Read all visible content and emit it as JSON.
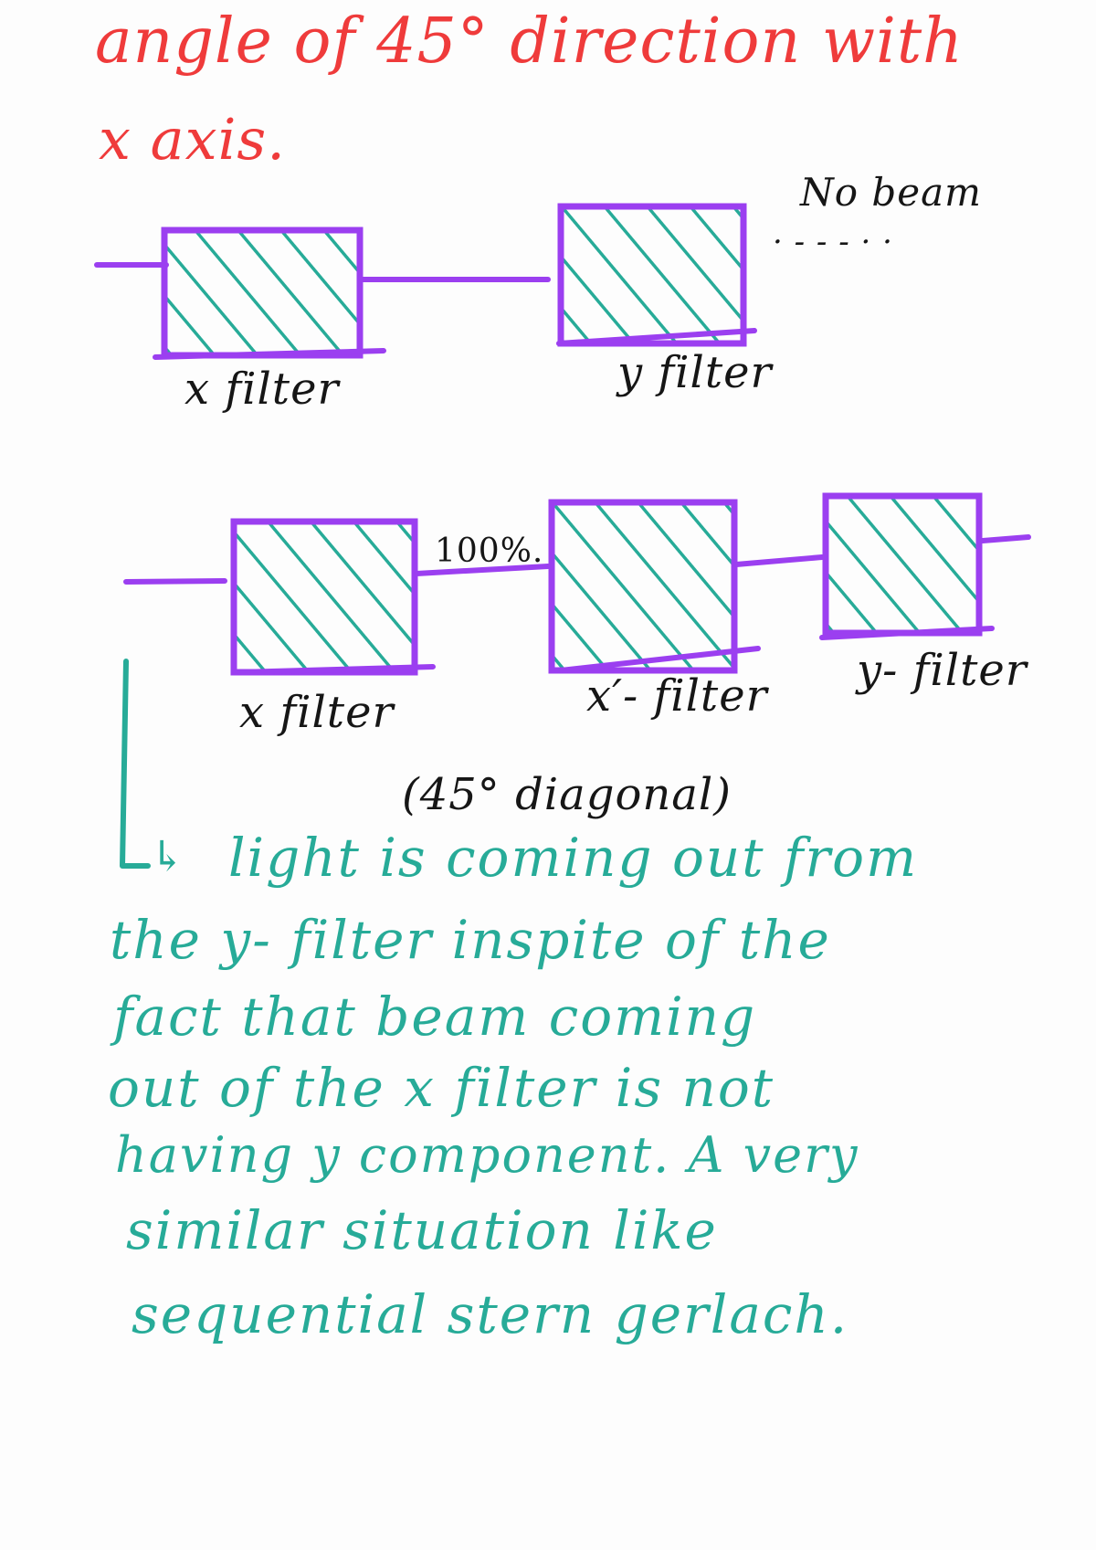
{
  "heading": {
    "line1": "angle of 45° direction with",
    "line2": "x axis."
  },
  "diagram1": {
    "filter1_label": "x filter",
    "filter2_label": "y filter",
    "output_label": "No beam",
    "output_dots": "· - - - · ·"
  },
  "diagram2": {
    "filter1_label": "x filter",
    "percent_label": "100%.",
    "filter2_label": "x′- filter",
    "filter2_note": "(45° diagonal)",
    "filter3_label": "y- filter"
  },
  "notes": {
    "arrow": "↳",
    "lines": [
      "light is coming out from",
      "the y- filter inspite of the",
      "fact that beam coming",
      "out of the x filter is not",
      "having y component. A very",
      "similar situation like",
      "sequential stern gerlach."
    ]
  },
  "colors": {
    "heading": "#ef3b3b",
    "filter_border": "#9b3ff0",
    "filter_hatch": "#27ab98",
    "notes": "#27ab98",
    "labels": "#161616"
  }
}
